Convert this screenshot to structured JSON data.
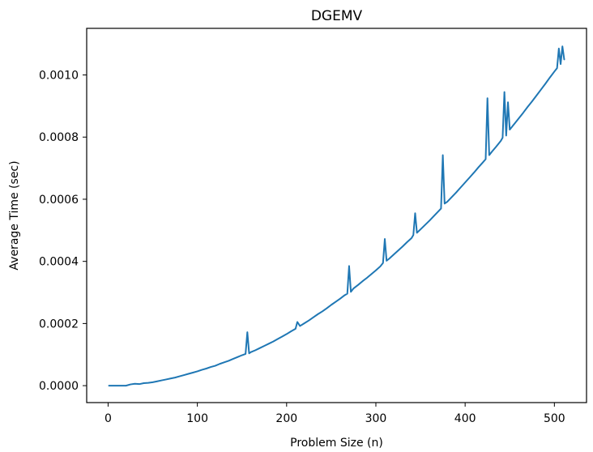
{
  "chart_data": {
    "type": "line",
    "title": "DGEMV",
    "xlabel": "Problem Size (n)",
    "ylabel": "Average Time (sec)",
    "xlim": [
      -24,
      536
    ],
    "ylim": [
      -5.45e-05,
      0.00115
    ],
    "xticks": [
      0,
      100,
      200,
      300,
      400,
      500
    ],
    "yticks": [
      0.0,
      0.0002,
      0.0004,
      0.0006,
      0.0008,
      0.001
    ],
    "xtick_labels": [
      "0",
      "100",
      "200",
      "300",
      "400",
      "500"
    ],
    "ytick_labels": [
      "0.0000",
      "0.0002",
      "0.0004",
      "0.0006",
      "0.0008",
      "0.0010"
    ],
    "grid": false,
    "legend": "none",
    "series": [
      {
        "color": "#1f77b4",
        "x": [
          1,
          10,
          20,
          25,
          30,
          35,
          40,
          45,
          50,
          55,
          60,
          65,
          70,
          75,
          80,
          85,
          90,
          95,
          100,
          105,
          110,
          115,
          120,
          125,
          130,
          135,
          140,
          145,
          150,
          154,
          156,
          158,
          160,
          165,
          170,
          175,
          180,
          185,
          190,
          195,
          200,
          205,
          210,
          212,
          215,
          220,
          225,
          230,
          235,
          240,
          245,
          250,
          255,
          260,
          265,
          268,
          270,
          272,
          275,
          280,
          285,
          290,
          295,
          300,
          305,
          308,
          310,
          312,
          315,
          320,
          325,
          330,
          335,
          340,
          342,
          344,
          346,
          350,
          355,
          360,
          365,
          370,
          373,
          375,
          377,
          380,
          385,
          390,
          395,
          400,
          405,
          410,
          415,
          420,
          423,
          425,
          427,
          430,
          435,
          440,
          442,
          444,
          446,
          448,
          450,
          455,
          460,
          465,
          470,
          475,
          480,
          485,
          490,
          495,
          500,
          503,
          505,
          507,
          509,
          511
        ],
        "y": [
          0.0,
          0.0,
          0.0,
          4e-06,
          6e-06,
          5e-06,
          8e-06,
          9e-06,
          1.1e-05,
          1.4e-05,
          1.7e-05,
          2e-05,
          2.3e-05,
          2.6e-05,
          3e-05,
          3.4e-05,
          3.8e-05,
          4.2e-05,
          4.6e-05,
          5.1e-05,
          5.5e-05,
          6e-05,
          6.4e-05,
          7e-05,
          7.5e-05,
          8e-05,
          8.6e-05,
          9.2e-05,
          9.8e-05,
          0.000102,
          0.000172,
          0.000104,
          0.000108,
          0.000114,
          0.000121,
          0.000128,
          0.000135,
          0.000142,
          0.00015,
          0.000158,
          0.000166,
          0.000175,
          0.000183,
          0.000205,
          0.000192,
          0.000201,
          0.00021,
          0.00022,
          0.00023,
          0.000239,
          0.000249,
          0.00026,
          0.00027,
          0.00028,
          0.000291,
          0.000296,
          0.000385,
          0.000302,
          0.000313,
          0.000324,
          0.000336,
          0.000347,
          0.000359,
          0.000371,
          0.000384,
          0.000395,
          0.000472,
          0.000402,
          0.000409,
          0.000422,
          0.000435,
          0.000448,
          0.000462,
          0.000475,
          0.000485,
          0.000555,
          0.000492,
          0.000503,
          0.000517,
          0.000531,
          0.000546,
          0.000561,
          0.00057,
          0.000742,
          0.000586,
          0.000592,
          0.000607,
          0.000622,
          0.000638,
          0.000654,
          0.00067,
          0.000686,
          0.000703,
          0.000719,
          0.000729,
          0.000925,
          0.000742,
          0.000753,
          0.00077,
          0.000788,
          0.000798,
          0.000945,
          0.000805,
          0.000912,
          0.000824,
          0.000842,
          0.00086,
          0.000878,
          0.000897,
          0.000915,
          0.000934,
          0.000953,
          0.000972,
          0.000992,
          0.001011,
          0.001022,
          0.001085,
          0.001035,
          0.001092,
          0.00105
        ]
      }
    ]
  }
}
